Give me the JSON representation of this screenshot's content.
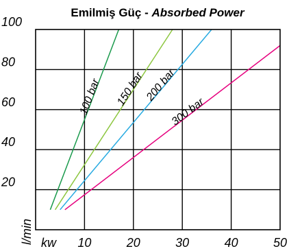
{
  "chart_data": {
    "type": "line",
    "title": "Emilmiş Güç - ",
    "title_en": "Absorbed Power",
    "xlabel": "kw",
    "ylabel": "l/min",
    "xlim": [
      0,
      50
    ],
    "ylim": [
      0,
      100
    ],
    "x_ticks": [
      "10",
      "20",
      "30",
      "40",
      "50"
    ],
    "y_ticks": [
      "100",
      "80",
      "60",
      "40",
      "20"
    ],
    "grid": true,
    "series": [
      {
        "name": "100 bar",
        "color": "#1a9a4c",
        "x": [
          3,
          17
        ],
        "y": [
          10,
          100
        ]
      },
      {
        "name": "150 bar",
        "color": "#8cc63f",
        "x": [
          4,
          28
        ],
        "y": [
          10,
          100
        ]
      },
      {
        "name": "200 bar",
        "color": "#27aae1",
        "x": [
          5,
          36
        ],
        "y": [
          10,
          100
        ]
      },
      {
        "name": "300 bar",
        "color": "#e6007e",
        "x": [
          6,
          50
        ],
        "y": [
          10,
          92
        ]
      }
    ]
  }
}
